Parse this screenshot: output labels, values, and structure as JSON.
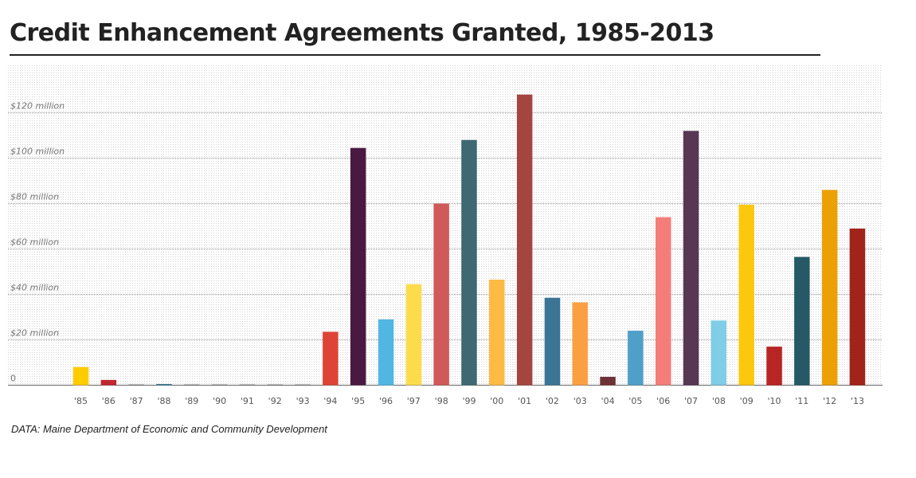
{
  "header": {
    "title": "Credit Enhancement Agreements Granted, 1985-2013"
  },
  "footer": {
    "source": "DATA: Maine Department of Economic and Community Development"
  },
  "chart_data": {
    "type": "bar",
    "title": "Credit Enhancement Agreements Granted, 1985-2013",
    "xlabel": "",
    "ylabel": "",
    "ylim": [
      0,
      140
    ],
    "y_unit": "$ million",
    "grid": true,
    "y_ticks": [
      {
        "value": 0,
        "label": "0"
      },
      {
        "value": 20,
        "label": "$20 million"
      },
      {
        "value": 40,
        "label": "$40 million"
      },
      {
        "value": 60,
        "label": "$60 million"
      },
      {
        "value": 80,
        "label": "$80 million"
      },
      {
        "value": 100,
        "label": "$100 million"
      },
      {
        "value": 120,
        "label": "$120 million"
      }
    ],
    "categories": [
      "'85",
      "'86",
      "'87",
      "'88",
      "'89",
      "'90",
      "'91",
      "'92",
      "'93",
      "'94",
      "'95",
      "'96",
      "'97",
      "'98",
      "'99",
      "'00",
      "'01",
      "'02",
      "'03",
      "'04",
      "'05",
      "'06",
      "'07",
      "'08",
      "'09",
      "'10",
      "'11",
      "'12",
      "'13"
    ],
    "values": [
      8,
      2.3,
      0.2,
      0.5,
      0.1,
      0.1,
      0.1,
      0.1,
      0.2,
      23.5,
      104.5,
      29,
      44.5,
      80,
      108,
      46.5,
      128,
      38.5,
      36.5,
      3.7,
      24,
      74,
      112,
      28.5,
      79.5,
      17,
      56.5,
      86,
      69
    ],
    "colors": [
      "#FFCC00",
      "#C0282D",
      "#555555",
      "#2E6E8E",
      "#555555",
      "#555555",
      "#555555",
      "#555555",
      "#555555",
      "#DE4435",
      "#4A1942",
      "#51B7E2",
      "#FDDC4C",
      "#D05A5A",
      "#3E6872",
      "#FDBB44",
      "#A4463F",
      "#3A7595",
      "#FBA042",
      "#6E3236",
      "#509FC8",
      "#F47D7A",
      "#573753",
      "#7FCDE6",
      "#FCC80E",
      "#B82525",
      "#255965",
      "#EDA006",
      "#A1241B"
    ]
  }
}
